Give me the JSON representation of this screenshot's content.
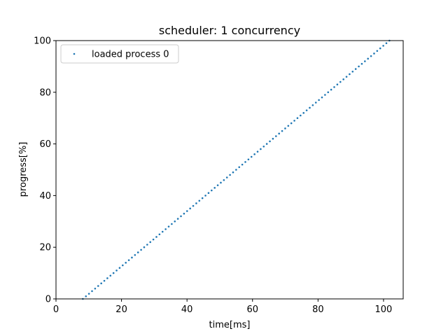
{
  "chart_data": {
    "type": "scatter",
    "title": "scheduler: 1 concurrency",
    "xlabel": "time[ms]",
    "ylabel": "progress[%]",
    "xlim": [
      0,
      106
    ],
    "ylim": [
      0,
      100
    ],
    "xticks": [
      0,
      20,
      40,
      60,
      80,
      100
    ],
    "yticks": [
      0,
      20,
      40,
      60,
      80,
      100
    ],
    "grid": false,
    "legend_position": "upper-left",
    "series": [
      {
        "name": "loaded process 0",
        "color": "#1f77b4",
        "x_start": 8.2,
        "x_end": 101.8,
        "y_start": 0,
        "y_end": 100,
        "points": 101
      }
    ]
  }
}
